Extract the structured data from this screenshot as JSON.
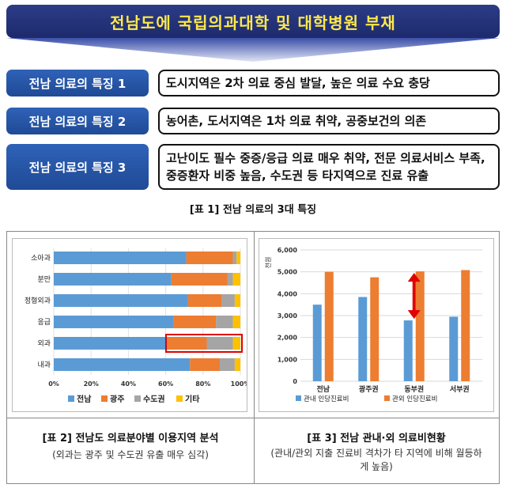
{
  "banner": {
    "title": "전남도에 국립의과대학 및 대학병원 부재"
  },
  "features": [
    {
      "label": "전남 의료의 특징 1",
      "text": "도시지역은 2차 의료 중심 발달, 높은 의료 수요 충당"
    },
    {
      "label": "전남 의료의 특징 2",
      "text": "농어촌, 도서지역은 1차 의료 취약, 공중보건의 의존"
    },
    {
      "label": "전남 의료의 특징 3",
      "text": "고난이도 필수 중증/응급 의료 매우 취약, 전문 의료서비스 부족, 중증환자 비중 높음, 수도권 등 타지역으로 진료 유출"
    }
  ],
  "table1_caption": "[표 1] 전남 의료의 3대 특징",
  "table2": {
    "caption": "[표 2] 전남도 의료분야별 이용지역 분석",
    "note": "(외과는 광주 및 수도권 유출 매우 심각)"
  },
  "table3": {
    "caption": "[표 3] 전남 관내·외 의료비현황",
    "note": "(관내/관외 지출 진료비 격차가 타 지역에 비해 월등하게 높음)"
  },
  "colors": {
    "blue": "#5b9bd5",
    "orange": "#ed7d31",
    "gray": "#a5a5a5",
    "yellow": "#ffc000",
    "highlight": "#e00000"
  },
  "chart_data": [
    {
      "type": "bar",
      "orientation": "horizontal-stacked-percent",
      "categories": [
        "소아과",
        "분만",
        "정형외과",
        "응급",
        "외과",
        "내과"
      ],
      "series": [
        {
          "name": "전남",
          "values": [
            71,
            63,
            72,
            64,
            61,
            73
          ]
        },
        {
          "name": "광주",
          "values": [
            25,
            30,
            18,
            23,
            21,
            16
          ]
        },
        {
          "name": "수도권",
          "values": [
            2,
            3,
            7,
            9,
            14,
            8
          ]
        },
        {
          "name": "기타",
          "values": [
            2,
            4,
            3,
            4,
            4,
            3
          ]
        }
      ],
      "x_ticks": [
        "0%",
        "20%",
        "40%",
        "60%",
        "80%",
        "100%"
      ],
      "xlim": [
        0,
        100
      ],
      "highlight_category": "외과",
      "legend": "bottom"
    },
    {
      "type": "bar",
      "categories": [
        "전남",
        "광주권",
        "동부권",
        "서부권"
      ],
      "series": [
        {
          "name": "관내 인당진료비",
          "values": [
            3500,
            3850,
            2780,
            2950
          ]
        },
        {
          "name": "관외 인당진료비",
          "values": [
            5000,
            4750,
            5020,
            5080
          ]
        }
      ],
      "ylabel": "천원",
      "y_ticks": [
        "0",
        "1,000",
        "2,000",
        "3,000",
        "4,000",
        "5,000",
        "6,000"
      ],
      "ylim": [
        0,
        6000
      ],
      "gap_arrow_category": "동부권",
      "legend": "bottom"
    }
  ]
}
